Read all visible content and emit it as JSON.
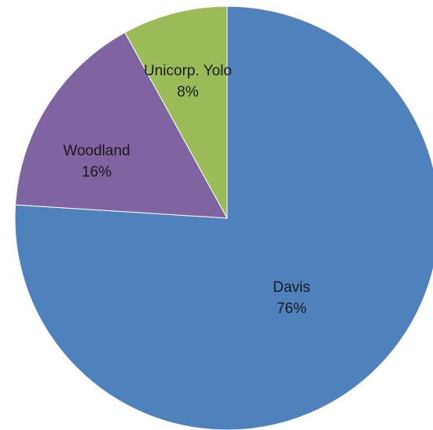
{
  "chart_data": {
    "type": "pie",
    "title": "",
    "start_angle_deg": 0,
    "direction": "clockwise",
    "slices": [
      {
        "label": "Davis",
        "percent_label": "76%",
        "value": 76,
        "color": "#4f81bd"
      },
      {
        "label": "Woodland",
        "percent_label": "16%",
        "value": 16,
        "color": "#8064a2"
      },
      {
        "label": "Unicorp. Yolo",
        "percent_label": "8%",
        "value": 8,
        "color": "#9bbb59"
      }
    ]
  }
}
